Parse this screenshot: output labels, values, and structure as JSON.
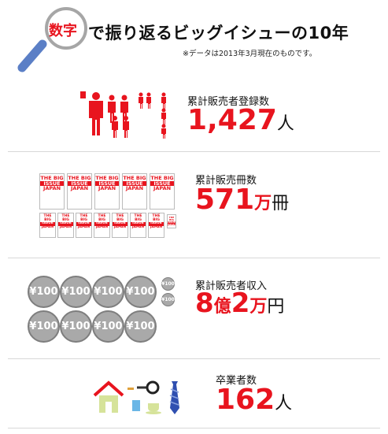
{
  "header": {
    "badge": "数字",
    "title": "で振り返るビッグイシューの10年",
    "note": "※データは2013年3月現在のものです。"
  },
  "stats": [
    {
      "label": "累計販売者登録数",
      "value": "1,427",
      "unit": "人"
    },
    {
      "label": "累計販売冊数",
      "value": "571",
      "unit_big": "万",
      "unit": "冊"
    },
    {
      "label": "累計販売者収入",
      "value_a": "8",
      "unit_a": "億",
      "value_b": "2",
      "unit_b": "万",
      "unit_c": "円"
    },
    {
      "label": "卒業者数",
      "value": "162",
      "unit": "人"
    }
  ],
  "magazine": {
    "line1": "THE BIG",
    "line2": "ISSUE",
    "line3": "JAPAN"
  },
  "coin_text": "¥100",
  "colors": {
    "accent": "#e8141e",
    "gray": "#a9a9a9",
    "magnifier": "#5b7fc6"
  }
}
